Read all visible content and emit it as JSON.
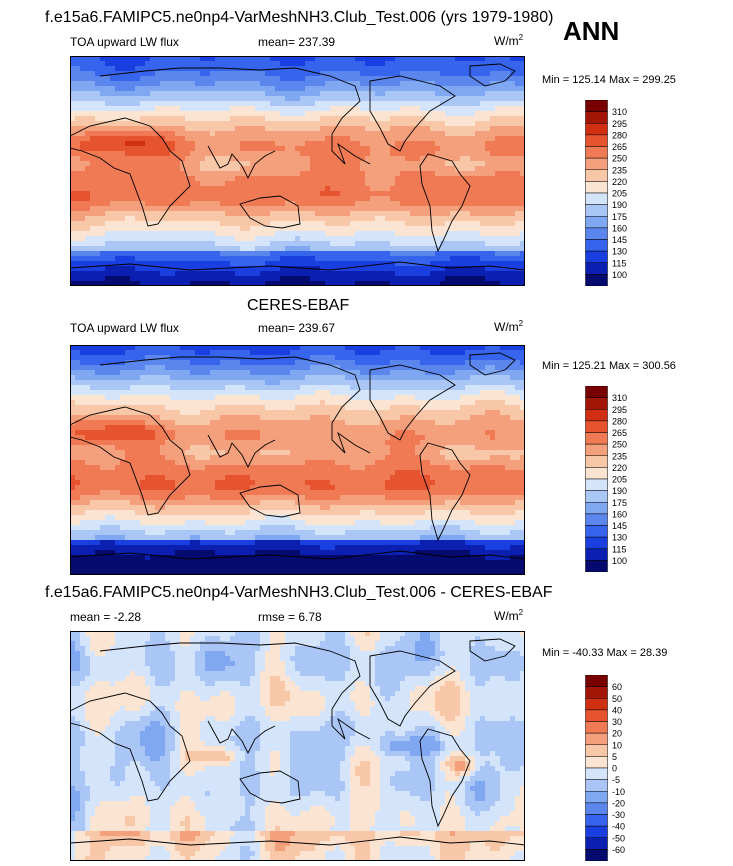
{
  "season": "ANN",
  "panels": [
    {
      "title": "f.e15a6.FAMIPC5.ne0np4-VarMeshNH3.Club_Test.006 (yrs 1979-1980)",
      "left_label": "TOA upward LW flux",
      "mid_label": "mean= 237.39",
      "units": "W/m",
      "units_sup": "2",
      "min_max": "Min = 125.14 Max = 299.25"
    },
    {
      "title": "CERES-EBAF",
      "left_label": "TOA upward LW flux",
      "mid_label": "mean= 239.67",
      "units": "W/m",
      "units_sup": "2",
      "min_max": "Min = 125.21 Max = 300.56"
    },
    {
      "title": "f.e15a6.FAMIPC5.ne0np4-VarMeshNH3.Club_Test.006 - CERES-EBAF",
      "left_label": "mean =  -2.28",
      "mid_label": "rmse =   6.78",
      "units": "W/m",
      "units_sup": "2",
      "min_max": "Min = -40.33 Max =  28.39"
    }
  ],
  "chart_data": [
    {
      "type": "heatmap",
      "map": "global lat-lon",
      "variable": "TOA upward LW flux",
      "units": "W/m2",
      "mean": 237.39,
      "min": 125.14,
      "max": 299.25,
      "colorbar_levels": [
        100,
        115,
        130,
        145,
        160,
        175,
        190,
        205,
        220,
        235,
        250,
        265,
        280,
        295,
        310
      ],
      "colorbar_colors": [
        "#040a6e",
        "#0b1fb0",
        "#1a3fe0",
        "#3764ec",
        "#5a86ee",
        "#80a8f2",
        "#a9c6f6",
        "#d4e4fa",
        "#fbe5d2",
        "#f8c7a8",
        "#f4a07c",
        "#ef7a53",
        "#e6532f",
        "#d02f12",
        "#a31606",
        "#780000"
      ]
    },
    {
      "type": "heatmap",
      "map": "global lat-lon",
      "variable": "TOA upward LW flux",
      "units": "W/m2",
      "mean": 239.67,
      "min": 125.21,
      "max": 300.56,
      "colorbar_levels": [
        100,
        115,
        130,
        145,
        160,
        175,
        190,
        205,
        220,
        235,
        250,
        265,
        280,
        295,
        310
      ],
      "colorbar_colors": [
        "#040a6e",
        "#0b1fb0",
        "#1a3fe0",
        "#3764ec",
        "#5a86ee",
        "#80a8f2",
        "#a9c6f6",
        "#d4e4fa",
        "#fbe5d2",
        "#f8c7a8",
        "#f4a07c",
        "#ef7a53",
        "#e6532f",
        "#d02f12",
        "#a31606",
        "#780000"
      ]
    },
    {
      "type": "heatmap",
      "map": "global lat-lon",
      "variable": "difference",
      "units": "W/m2",
      "mean": -2.28,
      "rmse": 6.78,
      "min": -40.33,
      "max": 28.39,
      "colorbar_levels": [
        -60,
        -50,
        -40,
        -30,
        -20,
        -10,
        -5,
        0,
        5,
        10,
        20,
        30,
        40,
        50,
        60
      ],
      "colorbar_colors": [
        "#040a6e",
        "#0b1fb0",
        "#1a3fe0",
        "#3764ec",
        "#5a86ee",
        "#80a8f2",
        "#a9c6f6",
        "#d4e4fa",
        "#fbe5d2",
        "#f8c7a8",
        "#f4a07c",
        "#ef7a53",
        "#e6532f",
        "#d02f12",
        "#a31606",
        "#780000"
      ]
    }
  ]
}
